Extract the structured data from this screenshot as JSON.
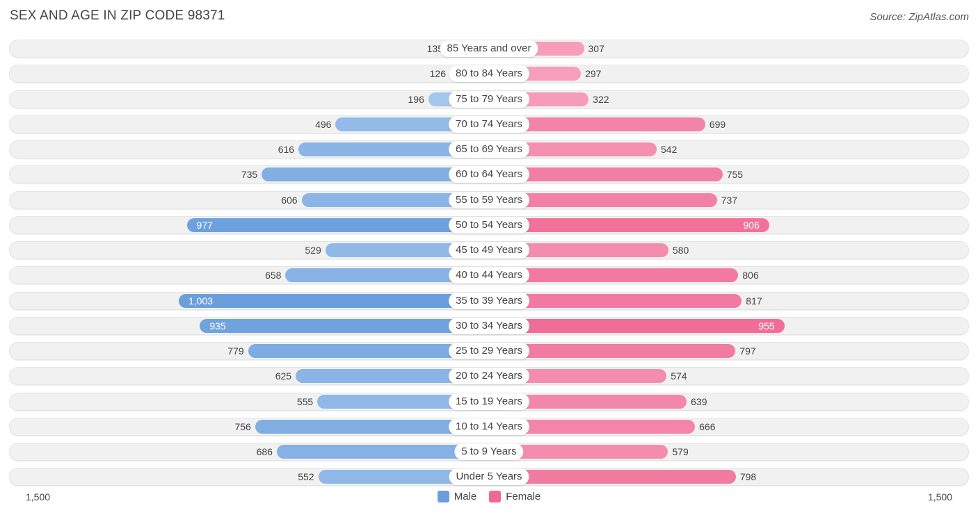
{
  "title": "SEX AND AGE IN ZIP CODE 98371",
  "source": "Source: ZipAtlas.com",
  "axis": {
    "left_label": "1,500",
    "right_label": "1,500"
  },
  "legend": {
    "male_label": "Male",
    "female_label": "Female"
  },
  "colors": {
    "male_dark": "#6a9fdc",
    "male_light": "#a9c9ee",
    "female_dark": "#f06895",
    "female_light": "#f7a8c2"
  },
  "chart_data": {
    "type": "bar",
    "orientation": "horizontal-butterfly",
    "title": "SEX AND AGE IN ZIP CODE 98371",
    "xlim": [
      -1500,
      1500
    ],
    "categories": [
      "85 Years and over",
      "80 to 84 Years",
      "75 to 79 Years",
      "70 to 74 Years",
      "65 to 69 Years",
      "60 to 64 Years",
      "55 to 59 Years",
      "50 to 54 Years",
      "45 to 49 Years",
      "40 to 44 Years",
      "35 to 39 Years",
      "30 to 34 Years",
      "25 to 29 Years",
      "20 to 24 Years",
      "15 to 19 Years",
      "10 to 14 Years",
      "5 to 9 Years",
      "Under 5 Years"
    ],
    "series": [
      {
        "name": "Male",
        "values": [
          135,
          126,
          196,
          496,
          616,
          735,
          606,
          977,
          529,
          658,
          1003,
          935,
          779,
          625,
          555,
          756,
          686,
          552
        ],
        "labels": [
          "135",
          "126",
          "196",
          "496",
          "616",
          "735",
          "606",
          "977",
          "529",
          "658",
          "1,003",
          "935",
          "779",
          "625",
          "555",
          "756",
          "686",
          "552"
        ]
      },
      {
        "name": "Female",
        "values": [
          307,
          297,
          322,
          699,
          542,
          755,
          737,
          906,
          580,
          806,
          817,
          955,
          797,
          574,
          639,
          666,
          579,
          798
        ],
        "labels": [
          "307",
          "297",
          "322",
          "699",
          "542",
          "755",
          "737",
          "906",
          "580",
          "806",
          "817",
          "955",
          "797",
          "574",
          "639",
          "666",
          "579",
          "798"
        ]
      }
    ],
    "legend_position": "bottom-center"
  }
}
